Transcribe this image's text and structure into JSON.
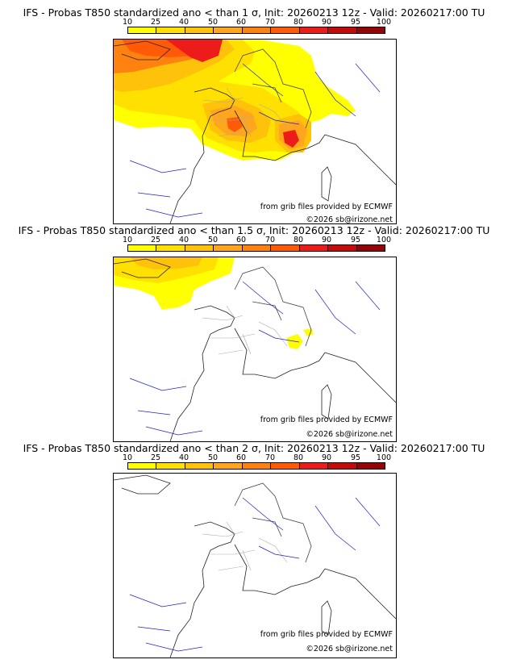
{
  "scale": {
    "labels": [
      "10",
      "25",
      "40",
      "50",
      "60",
      "70",
      "80",
      "90",
      "95",
      "100"
    ],
    "colors": [
      "#ffff00",
      "#ffe000",
      "#ffc20a",
      "#ffa51e",
      "#ff8210",
      "#ff5a08",
      "#ee1b1b",
      "#c30b0b",
      "#950505",
      "#660000"
    ]
  },
  "panels": [
    {
      "title": "IFS - Probas T850  standardized ano < than 1 σ, Init: 20260213 12z - Valid: 20260217:00 TU",
      "source": "from grib files provided by ECMWF",
      "copyright": "©2026 sb@irizone.net"
    },
    {
      "title": "IFS - Probas T850  standardized ano < than 1.5 σ, Init: 20260213 12z - Valid: 20260217:00 TU",
      "source": "from grib files provided by ECMWF",
      "copyright": "©2026 sb@irizone.net"
    },
    {
      "title": "IFS - Probas T850  standardized ano < than 2 σ, Init: 20260213 12z - Valid: 20260217:00 TU",
      "source": "from grib files provided by ECMWF",
      "copyright": "©2026 sb@irizone.net"
    }
  ]
}
